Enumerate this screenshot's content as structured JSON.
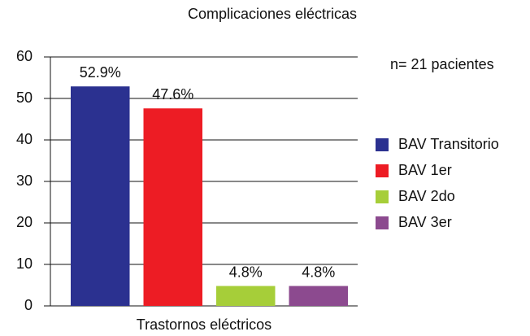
{
  "chart_data": {
    "type": "bar",
    "title": "Complicaciones eléctricas",
    "categories": [
      "Trastornos eléctricos"
    ],
    "series": [
      {
        "name": "BAV Transitorio",
        "color": "#2b3190",
        "values": [
          52.9
        ],
        "value_labels": [
          "52.9%"
        ]
      },
      {
        "name": "BAV 1er",
        "color": "#ed1c24",
        "values": [
          47.6
        ],
        "value_labels": [
          "47.6%"
        ]
      },
      {
        "name": "BAV 2do",
        "color": "#a6ce39",
        "values": [
          4.8
        ],
        "value_labels": [
          "4.8%"
        ]
      },
      {
        "name": "BAV 3er",
        "color": "#8c4a8f",
        "values": [
          4.8
        ],
        "value_labels": [
          "4.8%"
        ]
      }
    ],
    "annotations": [
      "n= 21 pacientes"
    ],
    "ylim": [
      0,
      60
    ],
    "yticks": [
      0,
      10,
      20,
      30,
      40,
      50,
      60
    ],
    "grid": true,
    "legend": "right"
  }
}
